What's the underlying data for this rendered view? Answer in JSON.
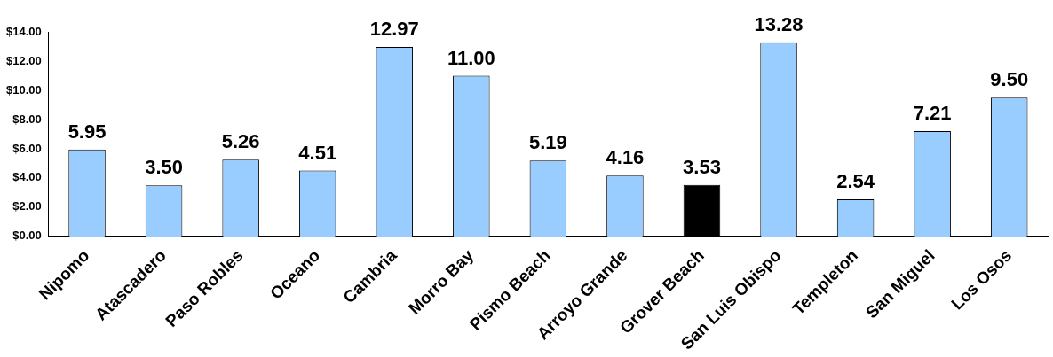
{
  "chart_data": {
    "type": "bar",
    "categories": [
      "Nipomo",
      "Atascadero",
      "Paso Robles",
      "Oceano",
      "Cambria",
      "Morro Bay",
      "Pismo Beach",
      "Arroyo Grande",
      "Grover Beach",
      "San Luis Obispo",
      "Templeton",
      "San Miguel",
      "Los Osos"
    ],
    "values": [
      5.95,
      3.5,
      5.26,
      4.51,
      12.97,
      11.0,
      5.19,
      4.16,
      3.53,
      13.28,
      2.54,
      7.21,
      9.5
    ],
    "colors": [
      "#99ccff",
      "#99ccff",
      "#99ccff",
      "#99ccff",
      "#99ccff",
      "#99ccff",
      "#99ccff",
      "#99ccff",
      "#000000",
      "#99ccff",
      "#99ccff",
      "#99ccff",
      "#99ccff"
    ],
    "ylim": [
      0,
      14
    ],
    "yticks": [
      {
        "value": 0,
        "label": "$0.00"
      },
      {
        "value": 2,
        "label": "$2.00"
      },
      {
        "value": 4,
        "label": "$4.00"
      },
      {
        "value": 6,
        "label": "$6.00"
      },
      {
        "value": 8,
        "label": "$8.00"
      },
      {
        "value": 10,
        "label": "$10.00"
      },
      {
        "value": 12,
        "label": "$12.00"
      },
      {
        "value": 14,
        "label": "$14.00"
      }
    ],
    "value_labels": [
      "5.95",
      "3.50",
      "5.26",
      "4.51",
      "12.97",
      "11.00",
      "5.19",
      "4.16",
      "3.53",
      "13.28",
      "2.54",
      "7.21",
      "9.50"
    ],
    "grid": false,
    "legend": false
  }
}
